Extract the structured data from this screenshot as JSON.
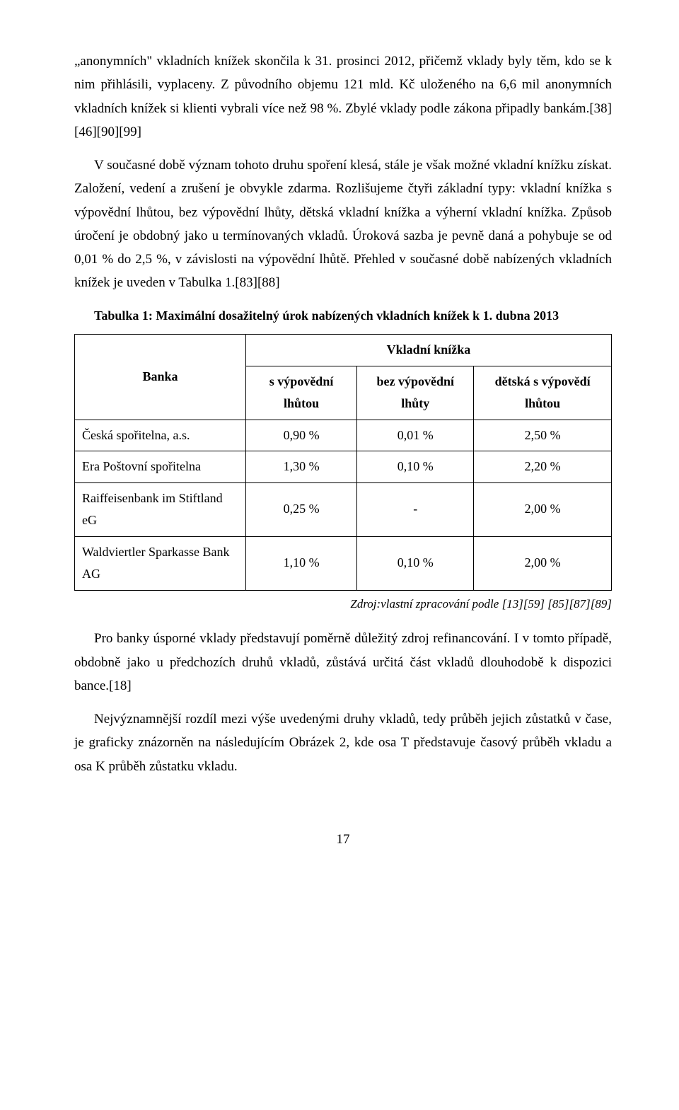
{
  "paragraphs": {
    "p1": "„anonymních\" vkladních knížek skončila k 31. prosinci 2012, přičemž vklady byly těm, kdo se k nim přihlásili, vyplaceny. Z původního objemu 121 mld. Kč uloženého na 6,6 mil anonymních vkladních knížek si klienti vybrali více než 98 %. Zbylé vklady podle zákona připadly bankám.[38][46][90][99]",
    "p2": "V současné době význam tohoto druhu spoření klesá, stále je však možné vkladní knížku získat. Založení, vedení a zrušení je obvykle zdarma. Rozlišujeme čtyři základní typy: vkladní knížka s výpovědní lhůtou, bez výpovědní lhůty, dětská vkladní knížka a výherní vkladní knížka. Způsob úročení je obdobný jako u termínovaných vkladů. Úroková sazba je pevně daná a pohybuje se od 0,01 % do 2,5 %, v závislosti na výpovědní lhůtě. Přehled v současné době nabízených vkladních knížek je uveden v Tabulka 1.[83][88]",
    "p3": "Pro banky úsporné vklady představují poměrně důležitý zdroj refinancování. I v tomto případě, obdobně jako u předchozích druhů vkladů, zůstává určitá část vkladů dlouhodobě k dispozici bance.[18]",
    "p4": "Nejvýznamnější rozdíl mezi výše uvedenými druhy vkladů, tedy průběh jejich zůstatků v čase, je graficky znázorněn na následujícím Obrázek 2, kde osa T představuje časový průběh vkladu a osa K průběh zůstatku vkladu."
  },
  "table": {
    "caption": "Tabulka 1: Maximální dosažitelný úrok nabízených vkladních knížek  k 1. dubna 2013",
    "header_bank": "Banka",
    "header_group": "Vkladní knížka",
    "header_col1": "s výpovědní lhůtou",
    "header_col2": "bez výpovědní lhůty",
    "header_col3": "dětská s výpovědí lhůtou",
    "rows": [
      {
        "bank": "Česká spořitelna, a.s.",
        "c1": "0,90 %",
        "c2": "0,01 %",
        "c3": "2,50 %"
      },
      {
        "bank": "Era Poštovní spořitelna",
        "c1": "1,30 %",
        "c2": "0,10 %",
        "c3": "2,20 %"
      },
      {
        "bank": "Raiffeisenbank im Stiftland eG",
        "c1": "0,25 %",
        "c2": "-",
        "c3": "2,00 %"
      },
      {
        "bank": "Waldviertler Sparkasse Bank AG",
        "c1": "1,10 %",
        "c2": "0,10 %",
        "c3": "2,00 %"
      }
    ],
    "source": "Zdroj:vlastní zpracování podle [13][59] [85][87][89]"
  },
  "page_number": "17"
}
